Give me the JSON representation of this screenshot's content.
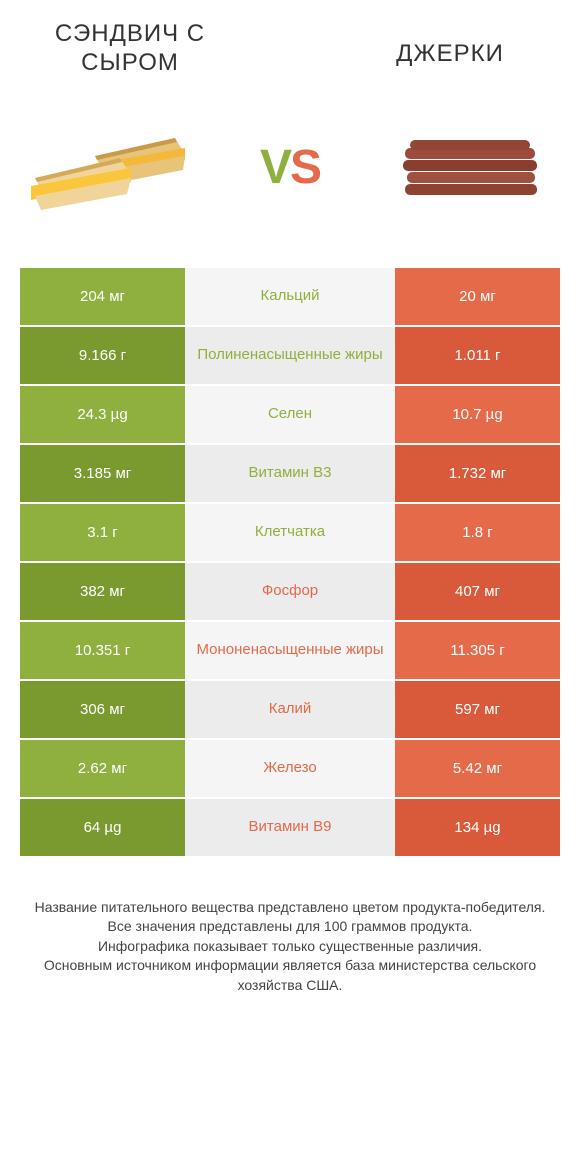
{
  "colors": {
    "green": "#8fb03e",
    "green_dark": "#7a9a2f",
    "orange": "#e46a4a",
    "orange_dark": "#d85a3a",
    "mid_bg": "#f5f5f5",
    "mid_bg_alt": "#ececec",
    "text": "#333333"
  },
  "header": {
    "left_title": "СЭНДВИЧ С СЫРОМ",
    "right_title": "ДЖЕРКИ",
    "vs": "VS"
  },
  "rows": [
    {
      "left": "204 мг",
      "label": "Кальций",
      "right": "20 мг",
      "winner": "left"
    },
    {
      "left": "9.166 г",
      "label": "Полиненасыщенные жиры",
      "right": "1.011 г",
      "winner": "left"
    },
    {
      "left": "24.3 µg",
      "label": "Селен",
      "right": "10.7 µg",
      "winner": "left"
    },
    {
      "left": "3.185 мг",
      "label": "Витамин B3",
      "right": "1.732 мг",
      "winner": "left"
    },
    {
      "left": "3.1 г",
      "label": "Клетчатка",
      "right": "1.8 г",
      "winner": "left"
    },
    {
      "left": "382 мг",
      "label": "Фосфор",
      "right": "407 мг",
      "winner": "right"
    },
    {
      "left": "10.351 г",
      "label": "Мононенасыщенные жиры",
      "right": "11.305 г",
      "winner": "right"
    },
    {
      "left": "306 мг",
      "label": "Калий",
      "right": "597 мг",
      "winner": "right"
    },
    {
      "left": "2.62 мг",
      "label": "Железо",
      "right": "5.42 мг",
      "winner": "right"
    },
    {
      "left": "64 µg",
      "label": "Витамин B9",
      "right": "134 µg",
      "winner": "right"
    }
  ],
  "footer": {
    "line1": "Название питательного вещества представлено цветом продукта-победителя.",
    "line2": "Все значения представлены для 100 граммов продукта.",
    "line3": "Инфографика показывает только существенные различия.",
    "line4": "Основным источником информации является база министерства сельского хозяйства США."
  }
}
